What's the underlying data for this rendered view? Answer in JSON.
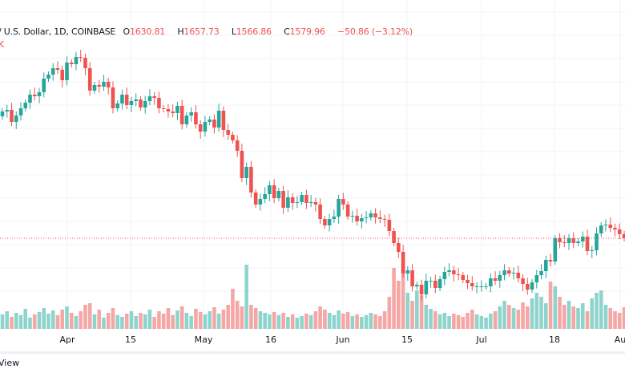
{
  "header": {
    "symbol": "/ U.S. Dollar, 1D, COINBASE",
    "open_label": "O",
    "open": "1630.81",
    "high_label": "H",
    "high": "1657.73",
    "low_label": "L",
    "low": "1566.86",
    "close_label": "C",
    "close": "1579.96",
    "change": "−50.86 (−3.12%)",
    "volume_partial": "K"
  },
  "x_axis": {
    "labels": [
      "Apr",
      "15",
      "May",
      "16",
      "Jun",
      "15",
      "Jul",
      "18",
      "Au"
    ]
  },
  "footer": {
    "view_label": "View"
  },
  "colors": {
    "up": "#26a69a",
    "down": "#ef5350",
    "up_vol": "#8fd4cc",
    "down_vol": "#f5a7a5",
    "grid": "#f0f3fa"
  },
  "chart_data": {
    "type": "candlestick",
    "first_open": 3100,
    "last_price": 1579.96,
    "closes": [
      3160,
      3180,
      3030,
      3110,
      3200,
      3270,
      3370,
      3350,
      3400,
      3570,
      3620,
      3700,
      3680,
      3550,
      3770,
      3750,
      3840,
      3830,
      3700,
      3420,
      3490,
      3470,
      3530,
      3460,
      3200,
      3260,
      3370,
      3240,
      3290,
      3310,
      3210,
      3290,
      3350,
      3330,
      3200,
      3190,
      3160,
      3140,
      3230,
      3000,
      3110,
      3150,
      3000,
      2910,
      3030,
      3060,
      2960,
      3170,
      2930,
      2870,
      2800,
      2670,
      2330,
      2470,
      2150,
      2000,
      2070,
      2130,
      2240,
      2080,
      2170,
      1960,
      2090,
      2020,
      2030,
      2120,
      2020,
      2030,
      2000,
      1820,
      1740,
      1820,
      1850,
      2070,
      2000,
      1850,
      1860,
      1790,
      1830,
      1840,
      1890,
      1840,
      1820,
      1810,
      1670,
      1520,
      1410,
      1140,
      1180,
      980,
      1000,
      880,
      1050,
      1050,
      960,
      1070,
      1160,
      1180,
      1130,
      1120,
      1060,
      1020,
      980,
      980,
      980,
      980,
      1080,
      1050,
      1120,
      1180,
      1140,
      1150,
      1080,
      1010,
      940,
      1030,
      1120,
      1170,
      1310,
      1290,
      1580,
      1530,
      1520,
      1580,
      1520,
      1540,
      1600,
      1420,
      1430,
      1640,
      1740,
      1750,
      1710,
      1690,
      1630.81,
      1579.96
    ],
    "volumes": [
      18,
      22,
      15,
      20,
      17,
      25,
      14,
      18,
      21,
      26,
      19,
      23,
      17,
      24,
      28,
      20,
      16,
      22,
      30,
      32,
      18,
      24,
      14,
      20,
      26,
      17,
      15,
      19,
      22,
      16,
      20,
      18,
      24,
      15,
      22,
      19,
      26,
      17,
      23,
      28,
      20,
      16,
      25,
      21,
      18,
      22,
      27,
      19,
      24,
      30,
      50,
      35,
      28,
      80,
      30,
      26,
      22,
      20,
      18,
      21,
      17,
      20,
      15,
      18,
      14,
      16,
      19,
      17,
      22,
      28,
      24,
      20,
      17,
      23,
      19,
      21,
      16,
      18,
      15,
      17,
      20,
      18,
      16,
      22,
      40,
      76,
      60,
      83,
      45,
      35,
      48,
      42,
      30,
      25,
      22,
      18,
      20,
      16,
      19,
      17,
      15,
      20,
      24,
      18,
      16,
      14,
      19,
      22,
      28,
      35,
      30,
      26,
      24,
      33,
      28,
      38,
      45,
      40,
      32,
      59,
      53,
      40,
      30,
      35,
      28,
      26,
      32,
      22,
      38,
      45,
      48,
      30,
      26,
      22,
      20,
      27
    ]
  }
}
